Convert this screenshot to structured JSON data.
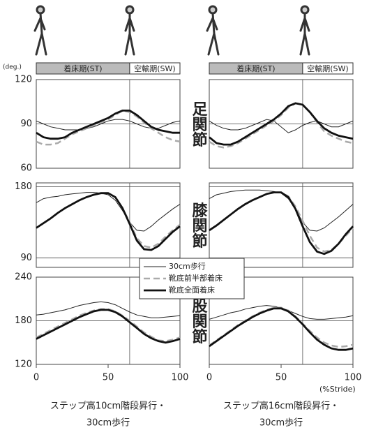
{
  "chart_data": {
    "type": "line",
    "y_unit": "(deg.)",
    "x_unit": "(%Stride)",
    "phases": [
      "着床期(ST)",
      "空輸期(SW)"
    ],
    "phase_boundary": 65,
    "x": [
      0,
      5,
      10,
      15,
      20,
      25,
      30,
      35,
      40,
      45,
      50,
      55,
      60,
      65,
      70,
      75,
      80,
      85,
      90,
      95,
      100
    ],
    "xlim": [
      0,
      100
    ],
    "xticks": [
      0,
      50,
      100
    ],
    "grid": true,
    "rows": [
      {
        "label": "足関節",
        "ylim": [
          60,
          120
        ],
        "yticks": [
          60,
          90,
          120
        ]
      },
      {
        "label": "膝関節",
        "ylim": [
          78,
          185
        ],
        "yticks": [
          90,
          180
        ]
      },
      {
        "label": "股関節",
        "ylim": [
          120,
          240
        ],
        "yticks": [
          120,
          180,
          240
        ]
      }
    ],
    "series": [
      {
        "name": "30cm歩行",
        "color": "#222222",
        "line_style": "thin"
      },
      {
        "name": "靴底前半部着床",
        "color": "#aaaaaa",
        "line_style": "dashed"
      },
      {
        "name": "靴底全面着床",
        "color": "#111111",
        "line_style": "thick"
      }
    ],
    "columns": [
      {
        "caption": [
          "ステップ高10cm階段昇行・",
          "30cm歩行"
        ],
        "values": [
          [
            [
              92,
              90,
              88,
              87,
              86,
              86,
              86,
              87,
              88,
              90,
              92,
              93,
              93,
              92,
              90,
              88,
              87,
              87,
              89,
              91,
              92
            ],
            [
              78,
              76,
              76,
              77,
              80,
              83,
              85,
              87,
              89,
              91,
              93,
              96,
              99,
              98,
              95,
              91,
              87,
              84,
              81,
              79,
              78
            ],
            [
              84,
              81,
              80,
              80,
              81,
              84,
              86,
              88,
              90,
              92,
              94,
              97,
              99,
              99,
              96,
              92,
              88,
              86,
              85,
              84,
              84
            ]
          ],
          [
            [
              160,
              165,
              167,
              168,
              170,
              171,
              172,
              173,
              173,
              172,
              170,
              163,
              150,
              135,
              125,
              124,
              130,
              138,
              145,
              152,
              158
            ],
            [
              128,
              134,
              140,
              147,
              153,
              158,
              163,
              167,
              170,
              172,
              172,
              167,
              153,
              135,
              115,
              105,
              103,
              108,
              117,
              125,
              132
            ],
            [
              128,
              134,
              140,
              147,
              153,
              158,
              163,
              167,
              170,
              172,
              172,
              167,
              153,
              133,
              112,
              101,
              100,
              105,
              114,
              123,
              130
            ]
          ],
          [
            [
              188,
              189,
              191,
              193,
              195,
              198,
              201,
              203,
              205,
              206,
              205,
              202,
              197,
              192,
              188,
              186,
              184,
              184,
              185,
              186,
              187
            ],
            [
              157,
              162,
              167,
              172,
              177,
              182,
              187,
              191,
              194,
              196,
              196,
              193,
              187,
              180,
              172,
              164,
              158,
              153,
              152,
              154,
              157
            ],
            [
              155,
              160,
              165,
              170,
              175,
              180,
              185,
              189,
              193,
              195,
              195,
              192,
              186,
              178,
              170,
              162,
              156,
              152,
              150,
              152,
              155
            ]
          ]
        ]
      },
      {
        "caption": [
          "ステップ高16cm階段昇行・",
          "30cm歩行"
        ],
        "values": [
          [
            [
              92,
              89,
              87,
              86,
              86,
              87,
              89,
              91,
              93,
              92,
              88,
              84,
              86,
              89,
              91,
              92,
              90,
              88,
              88,
              90,
              92
            ],
            [
              78,
              75,
              74,
              75,
              77,
              80,
              83,
              86,
              89,
              92,
              96,
              101,
              104,
              103,
              98,
              91,
              85,
              82,
              80,
              78,
              77
            ],
            [
              81,
              77,
              76,
              76,
              78,
              81,
              84,
              87,
              90,
              93,
              97,
              102,
              104,
              103,
              98,
              92,
              87,
              84,
              82,
              81,
              80
            ]
          ],
          [
            [
              165,
              170,
              172,
              174,
              175,
              176,
              176,
              176,
              175,
              174,
              172,
              165,
              152,
              135,
              125,
              124,
              128,
              135,
              142,
              150,
              158
            ],
            [
              125,
              131,
              138,
              145,
              152,
              158,
              163,
              167,
              171,
              173,
              173,
              168,
              155,
              137,
              118,
              103,
              98,
              100,
              108,
              118,
              128
            ],
            [
              125,
              131,
              138,
              145,
              152,
              158,
              163,
              167,
              171,
              173,
              173,
              167,
              152,
              130,
              110,
              98,
              95,
              99,
              108,
              120,
              130
            ]
          ],
          [
            [
              182,
              185,
              188,
              191,
              193,
              196,
              198,
              200,
              201,
              200,
              198,
              194,
              190,
              186,
              183,
              182,
              182,
              183,
              184,
              185,
              187
            ],
            [
              146,
              153,
              160,
              167,
              174,
              180,
              186,
              191,
              195,
              198,
              198,
              194,
              186,
              176,
              166,
              157,
              150,
              146,
              144,
              145,
              147
            ],
            [
              145,
              152,
              159,
              166,
              173,
              179,
              185,
              190,
              194,
              197,
              197,
              193,
              185,
              175,
              164,
              154,
              147,
              142,
              140,
              140,
              142
            ]
          ]
        ]
      }
    ]
  }
}
